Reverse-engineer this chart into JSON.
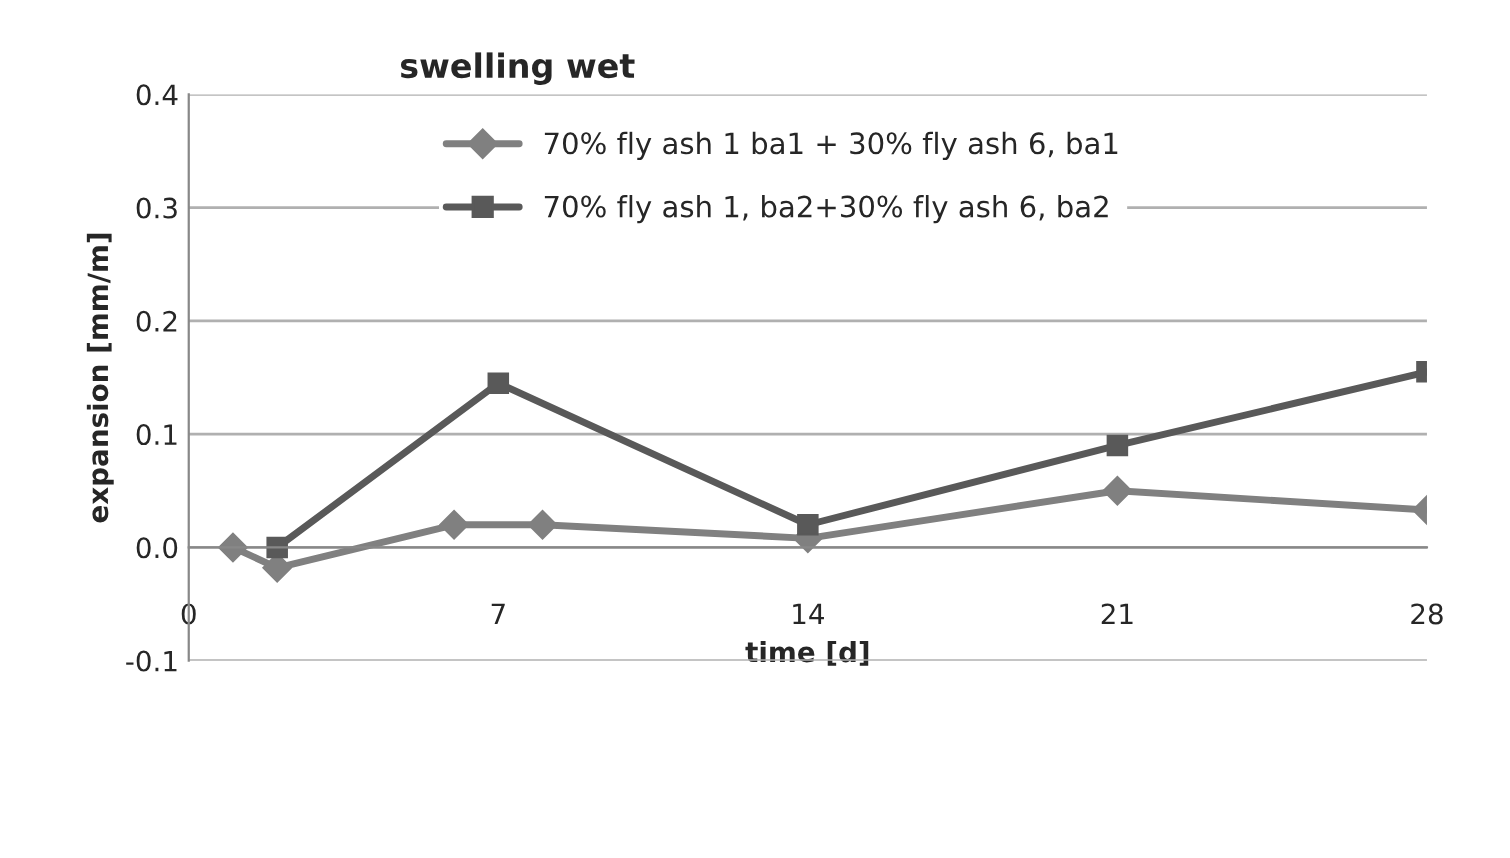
{
  "chart_data": {
    "type": "line",
    "title": "swelling wet",
    "xlabel": "time [d]",
    "ylabel": "expansion [mm/m]",
    "series": [
      {
        "name": "70% fly ash 1 ba1 + 30% fly ash 6, ba1",
        "color": "#808080",
        "marker": "diamond",
        "x": [
          1,
          2,
          6,
          8,
          14,
          21,
          28
        ],
        "values": [
          0.0,
          -0.018,
          0.02,
          0.02,
          0.008,
          0.05,
          0.033
        ]
      },
      {
        "name": "70% fly ash 1, ba2+30% fly ash 6, ba2",
        "color": "#595959",
        "marker": "square",
        "x": [
          2,
          7,
          14,
          21,
          28
        ],
        "values": [
          0.0,
          0.145,
          0.02,
          0.09,
          0.155
        ]
      }
    ],
    "xlim": [
      0,
      28
    ],
    "xticks": [
      0,
      7,
      14,
      21,
      28
    ],
    "ylim": [
      -0.1,
      0.4
    ],
    "yticks": [
      {
        "value": -0.1,
        "label": "-0.1"
      },
      {
        "value": 0,
        "label": "0.0"
      },
      {
        "value": 0.1,
        "label": "0.1"
      },
      {
        "value": 0.2,
        "label": "0.2"
      },
      {
        "value": 0.3,
        "label": "0.3"
      },
      {
        "value": 0.4,
        "label": "0.4"
      }
    ],
    "grid": "y",
    "legend": "top"
  }
}
